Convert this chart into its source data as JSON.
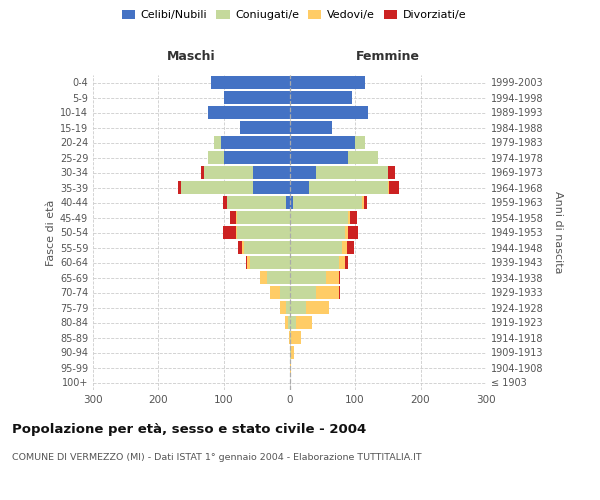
{
  "age_groups": [
    "100+",
    "95-99",
    "90-94",
    "85-89",
    "80-84",
    "75-79",
    "70-74",
    "65-69",
    "60-64",
    "55-59",
    "50-54",
    "45-49",
    "40-44",
    "35-39",
    "30-34",
    "25-29",
    "20-24",
    "15-19",
    "10-14",
    "5-9",
    "0-4"
  ],
  "birth_years": [
    "≤ 1903",
    "1904-1908",
    "1909-1913",
    "1914-1918",
    "1919-1923",
    "1924-1928",
    "1929-1933",
    "1934-1938",
    "1939-1943",
    "1944-1948",
    "1949-1953",
    "1954-1958",
    "1959-1963",
    "1964-1968",
    "1969-1973",
    "1974-1978",
    "1979-1983",
    "1984-1988",
    "1989-1993",
    "1994-1998",
    "1999-2003"
  ],
  "male": {
    "celibi": [
      0,
      0,
      0,
      0,
      0,
      0,
      0,
      0,
      0,
      0,
      0,
      0,
      5,
      55,
      55,
      100,
      105,
      75,
      125,
      100,
      120
    ],
    "coniugati": [
      0,
      0,
      0,
      0,
      2,
      5,
      15,
      35,
      60,
      70,
      80,
      80,
      90,
      110,
      75,
      25,
      10,
      0,
      0,
      0,
      0
    ],
    "vedovi": [
      0,
      0,
      0,
      1,
      5,
      10,
      15,
      10,
      5,
      3,
      2,
      1,
      1,
      0,
      0,
      0,
      0,
      0,
      0,
      0,
      0
    ],
    "divorziati": [
      0,
      0,
      0,
      0,
      0,
      0,
      0,
      0,
      2,
      5,
      20,
      10,
      5,
      5,
      5,
      0,
      0,
      0,
      0,
      0,
      0
    ]
  },
  "female": {
    "nubili": [
      0,
      0,
      0,
      0,
      0,
      0,
      0,
      0,
      0,
      0,
      0,
      0,
      5,
      30,
      40,
      90,
      100,
      65,
      120,
      95,
      115
    ],
    "coniugate": [
      0,
      0,
      2,
      3,
      10,
      25,
      40,
      55,
      75,
      80,
      85,
      90,
      105,
      120,
      110,
      45,
      15,
      0,
      0,
      0,
      0
    ],
    "vedove": [
      0,
      2,
      5,
      15,
      25,
      35,
      35,
      20,
      10,
      8,
      5,
      3,
      3,
      2,
      1,
      0,
      0,
      0,
      0,
      0,
      0
    ],
    "divorziate": [
      0,
      0,
      0,
      0,
      0,
      0,
      2,
      2,
      5,
      10,
      15,
      10,
      5,
      15,
      10,
      0,
      0,
      0,
      0,
      0,
      0
    ]
  },
  "colors": {
    "celibi": "#4472C4",
    "coniugati": "#C5D99C",
    "vedovi": "#FFCC66",
    "divorziati": "#CC2222"
  },
  "legend_labels": [
    "Celibi/Nubili",
    "Coniugati/e",
    "Vedovi/e",
    "Divorziati/e"
  ],
  "title": "Popolazione per età, sesso e stato civile - 2004",
  "subtitle": "COMUNE DI VERMEZZO (MI) - Dati ISTAT 1° gennaio 2004 - Elaborazione TUTTITALIA.IT",
  "xlabel_left": "Maschi",
  "xlabel_right": "Femmine",
  "ylabel_left": "Fasce di età",
  "ylabel_right": "Anni di nascita",
  "xlim": 300,
  "bg_color": "#ffffff",
  "grid_color": "#cccccc",
  "bar_height": 0.85
}
